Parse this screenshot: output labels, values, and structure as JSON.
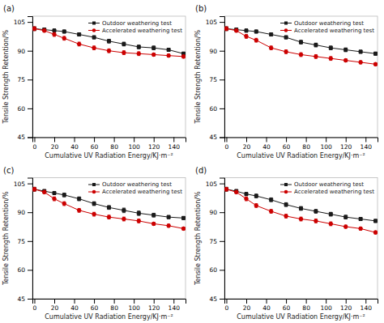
{
  "chart_data": [
    {
      "type": "line",
      "title": "(a)",
      "xlabel": "Cumulative UV Radiation Energy/KJ·m⁻²",
      "ylabel": "Tensile Strength Retention/%",
      "x": [
        0,
        10,
        20,
        30,
        45,
        60,
        75,
        90,
        105,
        120,
        135,
        150
      ],
      "xlim": [
        -2,
        152
      ],
      "ylim": [
        45,
        108
      ],
      "xticks": [
        0,
        20,
        40,
        60,
        80,
        100,
        120,
        140
      ],
      "yticks": [
        45,
        60,
        75,
        90,
        105
      ],
      "grid": false,
      "legend": "upper right",
      "series": [
        {
          "name": "Outdoor weathering test",
          "color": "#1a1a1a",
          "marker": "square",
          "values": [
            101.5,
            101.0,
            100.5,
            100.0,
            98.5,
            97.0,
            95.0,
            93.5,
            92.0,
            91.5,
            90.5,
            88.5
          ],
          "errors": [
            1.0,
            0.8,
            0.8,
            0.8,
            0.8,
            0.8,
            1.0,
            1.0,
            1.0,
            1.0,
            0.8,
            0.8
          ]
        },
        {
          "name": "Accelerated weathering test",
          "color": "#cc0000",
          "marker": "circle",
          "values": [
            101.5,
            100.5,
            98.5,
            96.5,
            93.5,
            91.5,
            90.0,
            89.0,
            88.5,
            88.0,
            87.5,
            87.0
          ],
          "errors": [
            1.0,
            0.8,
            1.0,
            1.0,
            1.0,
            1.0,
            1.0,
            1.0,
            1.0,
            0.8,
            0.8,
            0.8
          ]
        }
      ]
    },
    {
      "type": "line",
      "title": "(b)",
      "xlabel": "Cumulative UV Radiation Energy/KJ·m⁻²",
      "ylabel": "Tensile Strength Retention/%",
      "x": [
        0,
        10,
        20,
        30,
        45,
        60,
        75,
        90,
        105,
        120,
        135,
        150
      ],
      "xlim": [
        -2,
        152
      ],
      "ylim": [
        45,
        108
      ],
      "xticks": [
        0,
        20,
        40,
        60,
        80,
        100,
        120,
        140
      ],
      "yticks": [
        45,
        60,
        75,
        90,
        105
      ],
      "grid": false,
      "legend": "upper right",
      "series": [
        {
          "name": "Outdoor weathering test",
          "color": "#1a1a1a",
          "marker": "square",
          "values": [
            101.5,
            101.0,
            100.5,
            100.0,
            98.5,
            97.0,
            94.5,
            93.0,
            91.5,
            90.5,
            89.5,
            88.5
          ],
          "errors": [
            1.0,
            0.8,
            0.8,
            0.8,
            0.8,
            0.8,
            1.0,
            1.0,
            1.0,
            1.0,
            0.8,
            0.8
          ]
        },
        {
          "name": "Accelerated weathering test",
          "color": "#cc0000",
          "marker": "circle",
          "values": [
            101.5,
            100.5,
            97.5,
            95.5,
            91.5,
            89.5,
            88.0,
            87.0,
            86.0,
            85.0,
            84.0,
            83.0
          ],
          "errors": [
            1.0,
            0.8,
            1.0,
            1.0,
            1.0,
            1.0,
            1.0,
            1.0,
            1.0,
            0.8,
            0.8,
            0.8
          ]
        }
      ]
    },
    {
      "type": "line",
      "title": "(c)",
      "xlabel": "Cumulative UV Radiation Energy/KJ·m⁻²",
      "ylabel": "Tensile Strength Retention/%",
      "x": [
        0,
        10,
        20,
        30,
        45,
        60,
        75,
        90,
        105,
        120,
        135,
        150
      ],
      "xlim": [
        -2,
        152
      ],
      "ylim": [
        45,
        108
      ],
      "xticks": [
        0,
        20,
        40,
        60,
        80,
        100,
        120,
        140
      ],
      "yticks": [
        45,
        60,
        75,
        90,
        105
      ],
      "grid": false,
      "legend": "upper right",
      "series": [
        {
          "name": "Outdoor weathering test",
          "color": "#1a1a1a",
          "marker": "square",
          "values": [
            102.0,
            101.0,
            100.0,
            99.0,
            97.0,
            94.5,
            92.5,
            91.0,
            89.5,
            88.5,
            87.5,
            87.0
          ],
          "errors": [
            1.0,
            0.8,
            0.8,
            1.0,
            1.0,
            1.0,
            1.0,
            1.2,
            1.2,
            1.0,
            0.8,
            0.8
          ]
        },
        {
          "name": "Accelerated weathering test",
          "color": "#cc0000",
          "marker": "circle",
          "values": [
            102.0,
            100.5,
            97.0,
            94.5,
            91.0,
            89.0,
            87.5,
            86.5,
            85.5,
            84.0,
            83.0,
            81.5
          ],
          "errors": [
            1.0,
            0.8,
            1.0,
            1.0,
            1.0,
            1.0,
            1.0,
            1.0,
            1.0,
            0.8,
            0.8,
            0.8
          ]
        }
      ]
    },
    {
      "type": "line",
      "title": "(d)",
      "xlabel": "Cumulative UV Radiation Energy/KJ·m⁻²",
      "ylabel": "Tensile Strength Retention/%",
      "x": [
        0,
        10,
        20,
        30,
        45,
        60,
        75,
        90,
        105,
        120,
        135,
        150
      ],
      "xlim": [
        -2,
        152
      ],
      "ylim": [
        45,
        108
      ],
      "xticks": [
        0,
        20,
        40,
        60,
        80,
        100,
        120,
        140
      ],
      "yticks": [
        45,
        60,
        75,
        90,
        105
      ],
      "grid": false,
      "legend": "upper right",
      "series": [
        {
          "name": "Outdoor weathering test",
          "color": "#1a1a1a",
          "marker": "square",
          "values": [
            102.0,
            101.0,
            99.5,
            98.5,
            96.5,
            94.0,
            92.0,
            90.5,
            89.0,
            87.5,
            86.5,
            85.5
          ],
          "errors": [
            1.0,
            0.8,
            0.8,
            1.0,
            1.0,
            1.0,
            1.0,
            1.0,
            1.0,
            1.0,
            0.8,
            0.8
          ]
        },
        {
          "name": "Accelerated weathering test",
          "color": "#cc0000",
          "marker": "circle",
          "values": [
            102.0,
            100.5,
            97.0,
            93.5,
            90.5,
            88.0,
            86.5,
            85.5,
            84.0,
            82.5,
            81.5,
            79.5
          ],
          "errors": [
            1.0,
            0.8,
            1.0,
            1.0,
            1.0,
            1.0,
            1.0,
            1.0,
            1.0,
            0.8,
            0.8,
            0.8
          ]
        }
      ]
    }
  ]
}
